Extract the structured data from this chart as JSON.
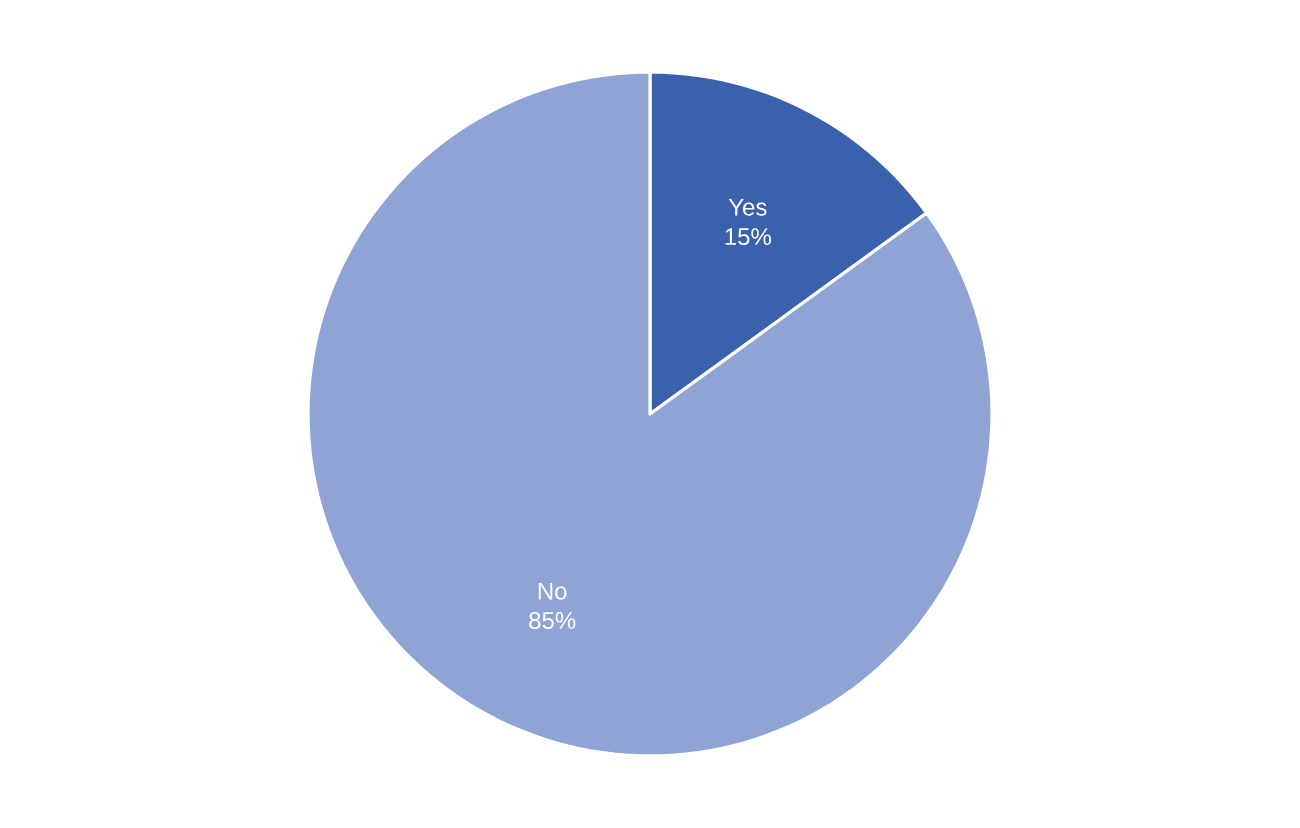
{
  "chart_data": {
    "type": "pie",
    "categories": [
      "Yes",
      "No"
    ],
    "values": [
      15,
      85
    ],
    "colors": [
      "#3a62ac",
      "#8fa3d4"
    ],
    "value_labels": [
      "15%",
      "85%"
    ]
  }
}
